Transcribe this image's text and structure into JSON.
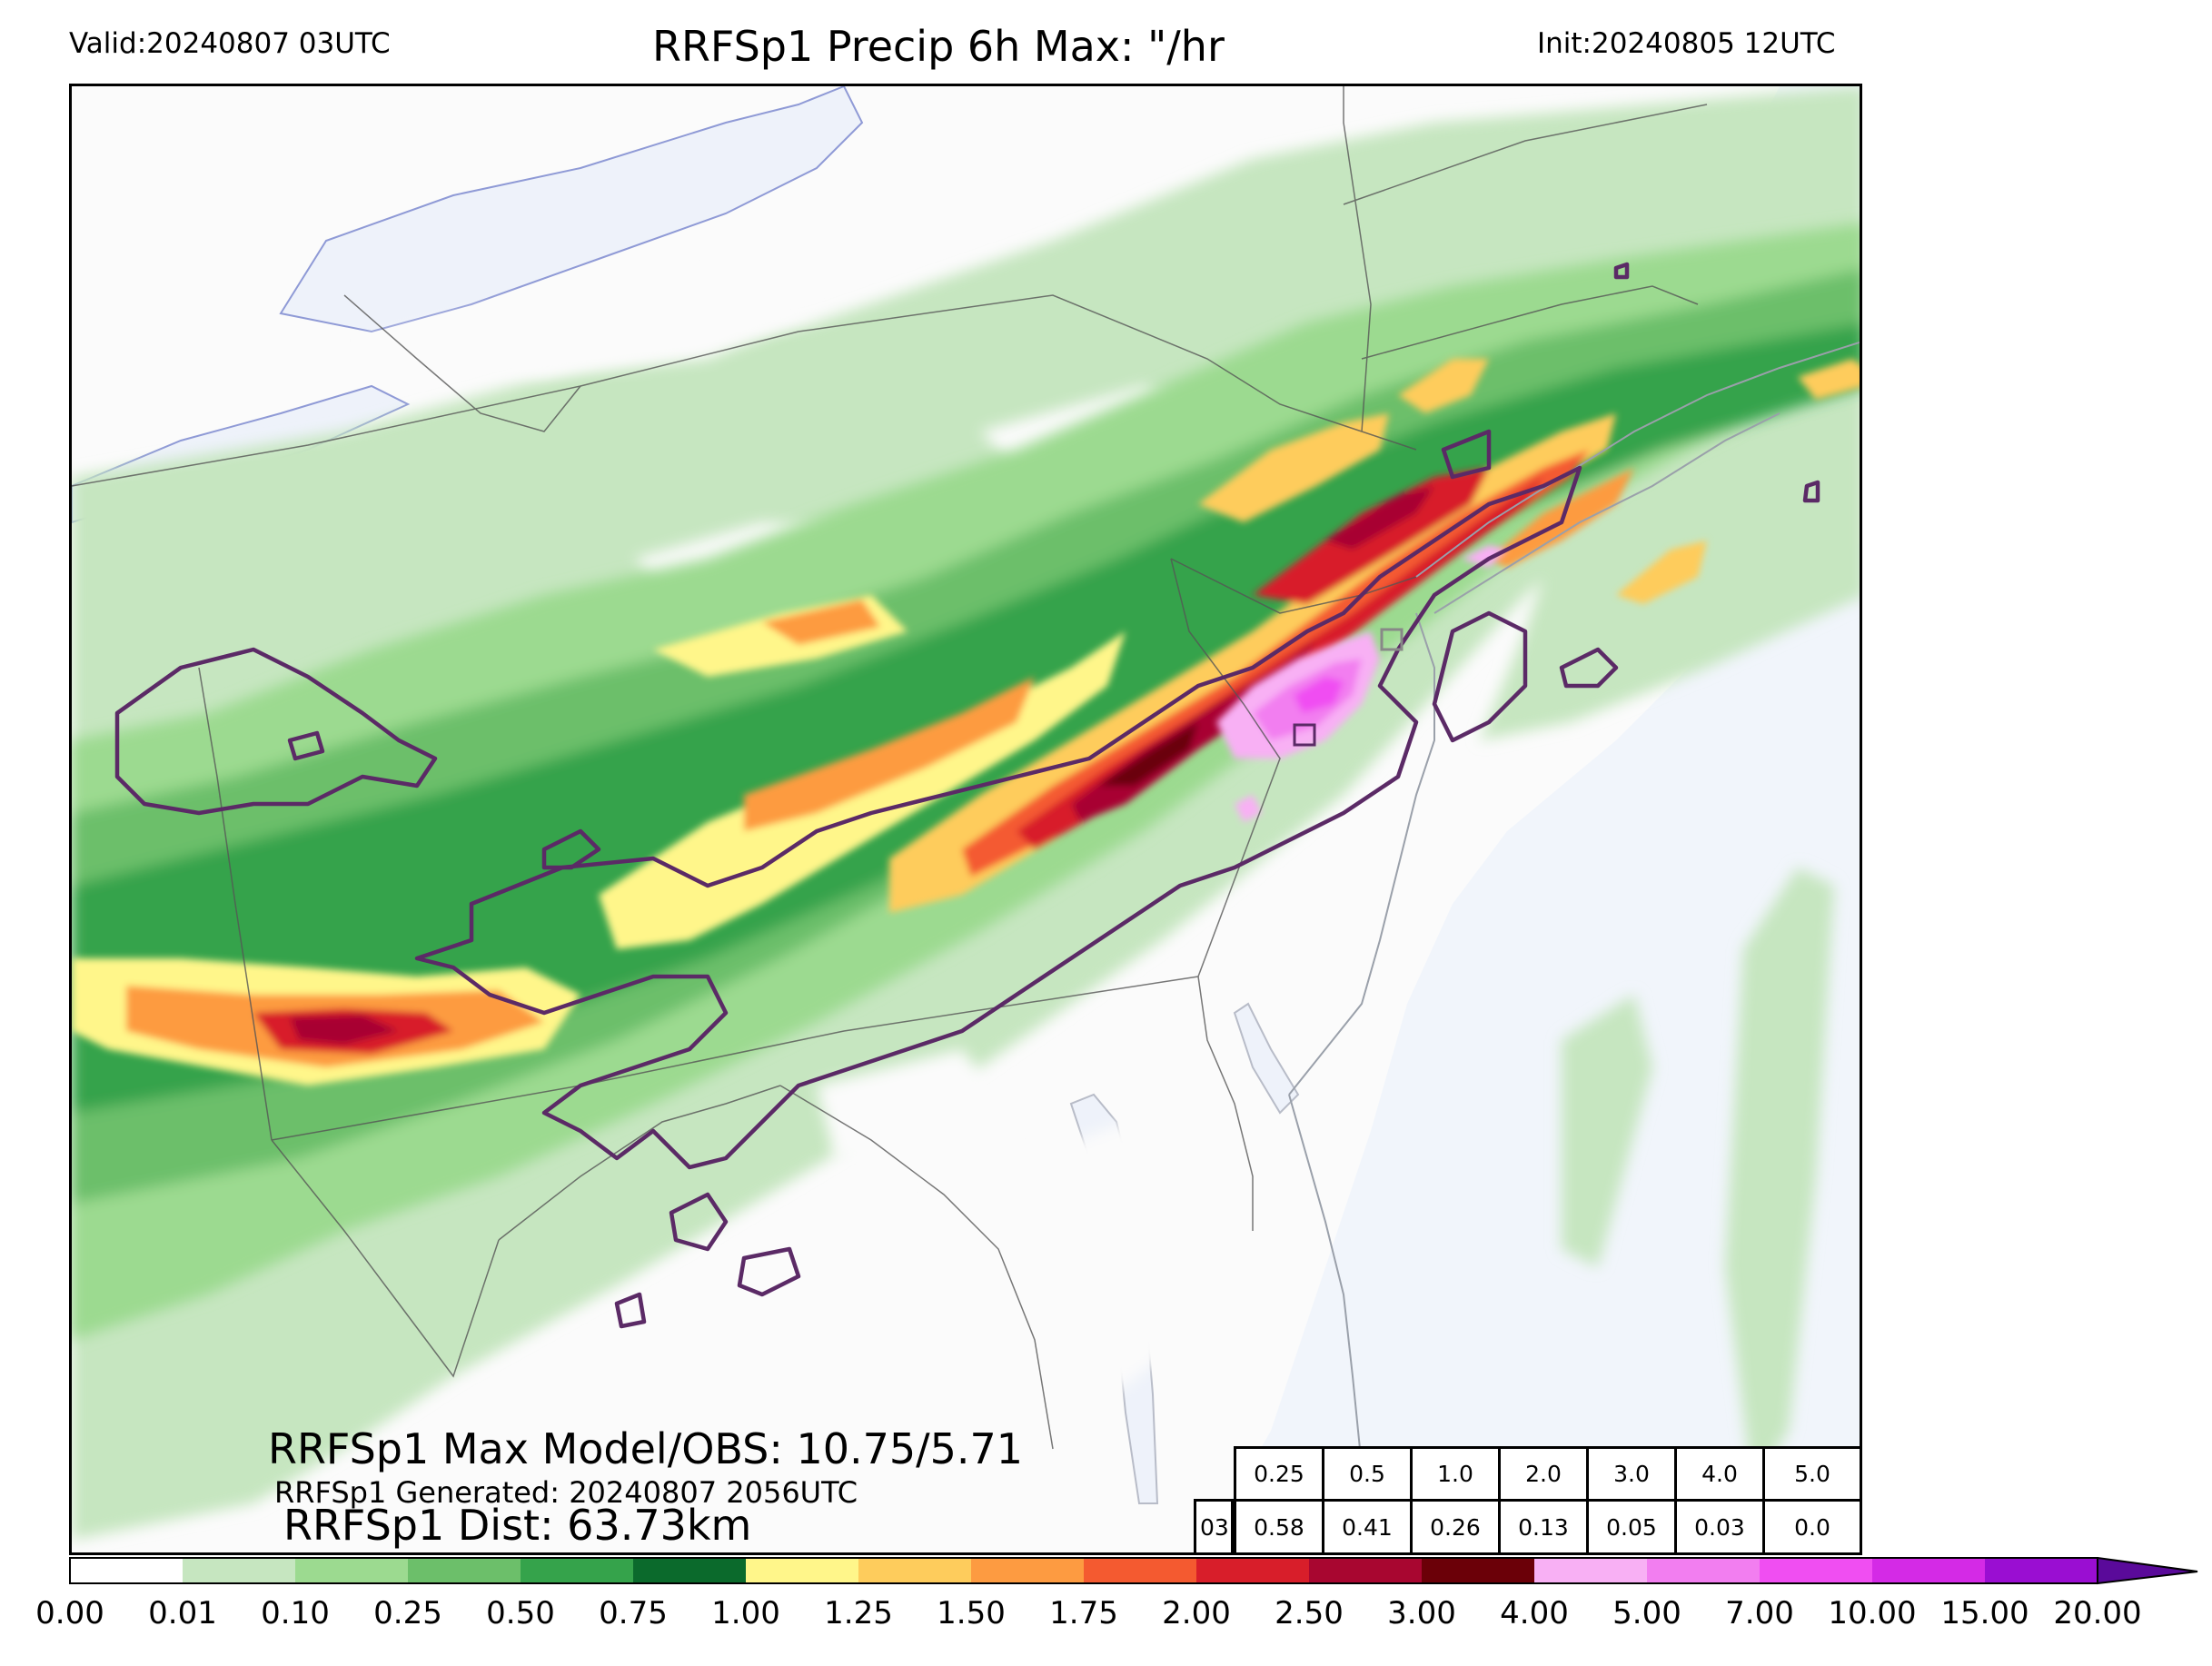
{
  "header": {
    "valid": "Valid:20240807 03UTC",
    "title": "RRFSp1 Precip 6h Max: \"/hr",
    "init": "Init:20240805 12UTC"
  },
  "stats": {
    "max_model_obs": "RRFSp1 Max Model/OBS: 10.75/5.71",
    "generated": "RRFSp1 Generated: 20240807 2056UTC",
    "distance": "RRFSp1 Dist: 63.73km"
  },
  "comparison_table": {
    "row_label": "03",
    "thresholds": [
      "0.25",
      "0.5",
      "1.0",
      "2.0",
      "3.0",
      "4.0",
      "5.0"
    ],
    "values": [
      "0.58",
      "0.41",
      "0.26",
      "0.13",
      "0.05",
      "0.03",
      "0.0"
    ]
  },
  "colorbar": {
    "ticks": [
      "0.00",
      "0.01",
      "0.10",
      "0.25",
      "0.50",
      "0.75",
      "1.00",
      "1.25",
      "1.50",
      "1.75",
      "2.00",
      "2.50",
      "3.00",
      "4.00",
      "5.00",
      "7.00",
      "10.00",
      "15.00",
      "20.00"
    ],
    "colors": [
      "#ffffff",
      "#c6e6c0",
      "#9cda90",
      "#6cbf6a",
      "#35a34b",
      "#0b6a2c",
      "#fff68a",
      "#fecc5c",
      "#fd9b41",
      "#f45a30",
      "#d81e2a",
      "#a80630",
      "#6b0008",
      "#f8b0f4",
      "#f27ef0",
      "#f04ef2",
      "#d42ae6",
      "#9a0ed2"
    ],
    "extend_color": "#5a0a9a"
  },
  "map_colors": {
    "ocean": "#f1f5fb",
    "land": "#fbfbfb",
    "boundary": "#555555",
    "obs_contour": "#5b2a66"
  }
}
